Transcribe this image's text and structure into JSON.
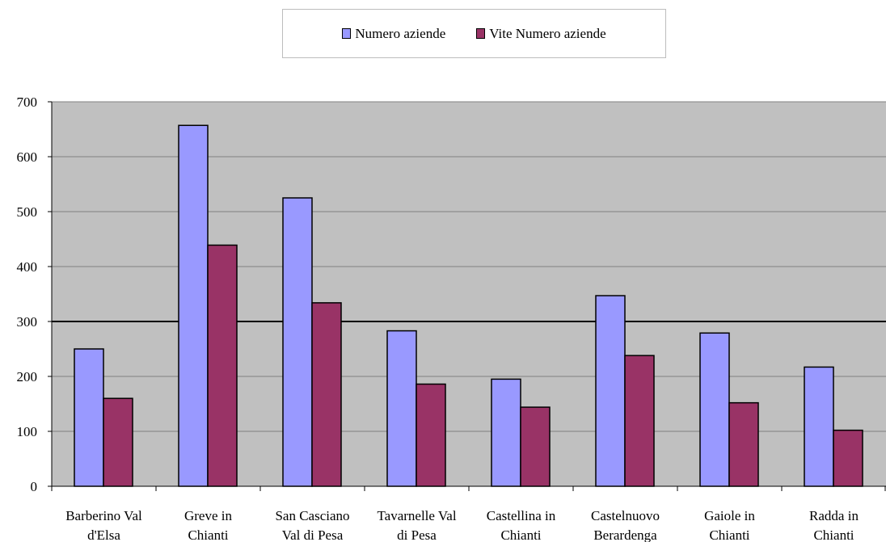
{
  "chart_data": {
    "type": "bar",
    "title": "",
    "xlabel": "",
    "ylabel": "",
    "categories": [
      [
        "Barberino Val",
        "d'Elsa"
      ],
      [
        "Greve in",
        "Chianti"
      ],
      [
        "San Casciano",
        "Val di Pesa"
      ],
      [
        "Tavarnelle Val",
        "di Pesa"
      ],
      [
        "Castellina in",
        "Chianti"
      ],
      [
        "Castelnuovo",
        "Berardenga"
      ],
      [
        "Gaiole in",
        "Chianti"
      ],
      [
        "Radda in",
        "Chianti"
      ]
    ],
    "series": [
      {
        "name": "Numero aziende",
        "color": "#9999ff",
        "values": [
          250,
          657,
          525,
          283,
          195,
          347,
          279,
          217
        ]
      },
      {
        "name": "Vite Numero aziende",
        "color": "#993366",
        "values": [
          160,
          439,
          334,
          186,
          144,
          238,
          152,
          102
        ]
      }
    ],
    "ylim": [
      0,
      700
    ],
    "yticks": [
      0,
      100,
      200,
      300,
      400,
      500,
      600,
      700
    ],
    "grid": true,
    "highlight_line": 300,
    "plot_background": "#c0c0c0",
    "legend_position": "top-center"
  }
}
